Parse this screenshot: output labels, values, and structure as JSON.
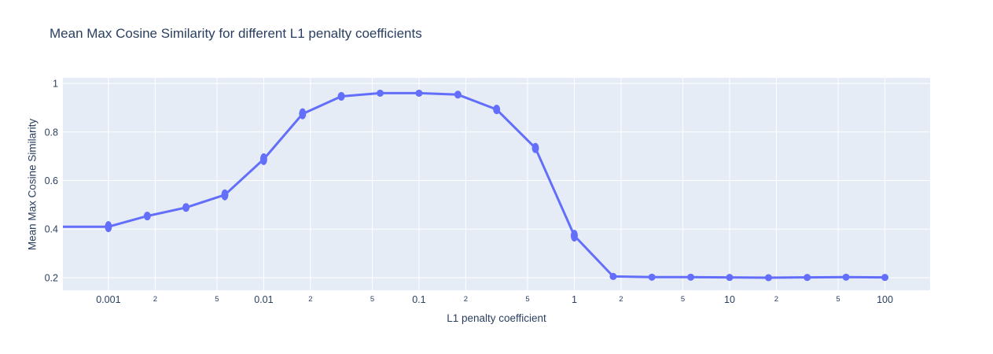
{
  "figure": {
    "background": "#FFFFFF"
  },
  "chart_data": {
    "type": "line",
    "title": "Mean Max Cosine Similarity for different L1 penalty coefficients",
    "xlabel": "L1 penalty coefficient",
    "ylabel": "Mean Max Cosine Similarity",
    "x_scale": "log",
    "legend": false,
    "grid": true,
    "x": [
      0.001,
      0.00178,
      0.00316,
      0.00562,
      0.01,
      0.0178,
      0.0316,
      0.0562,
      0.1,
      0.178,
      0.316,
      0.562,
      1,
      1.78,
      3.16,
      5.62,
      10,
      17.8,
      31.6,
      56.2,
      100
    ],
    "y": [
      0.41,
      0.454,
      0.489,
      0.541,
      0.688,
      0.875,
      0.947,
      0.96,
      0.96,
      0.954,
      0.893,
      0.734,
      0.373,
      0.205,
      0.202,
      0.202,
      0.201,
      0.2,
      0.201,
      0.202,
      0.201
    ],
    "line_extends_flat_to_left_plot_edge": true,
    "xlim_log10": [
      -3.293,
      2.291
    ],
    "ylim": [
      0.148,
      1.023
    ],
    "x_ticks_major": [
      {
        "value": 0.001,
        "label": "0.001"
      },
      {
        "value": 0.01,
        "label": "0.01"
      },
      {
        "value": 0.1,
        "label": "0.1"
      },
      {
        "value": 1,
        "label": "1"
      },
      {
        "value": 10,
        "label": "10"
      },
      {
        "value": 100,
        "label": "100"
      }
    ],
    "x_ticks_minor": [
      {
        "value": 0.002,
        "label": "2"
      },
      {
        "value": 0.005,
        "label": "5"
      },
      {
        "value": 0.02,
        "label": "2"
      },
      {
        "value": 0.05,
        "label": "5"
      },
      {
        "value": 0.2,
        "label": "2"
      },
      {
        "value": 0.5,
        "label": "5"
      },
      {
        "value": 2,
        "label": "2"
      },
      {
        "value": 5,
        "label": "5"
      },
      {
        "value": 20,
        "label": "2"
      },
      {
        "value": 50,
        "label": "5"
      }
    ],
    "y_ticks": [
      {
        "value": 0.2,
        "label": "0.2"
      },
      {
        "value": 0.4,
        "label": "0.4"
      },
      {
        "value": 0.6,
        "label": "0.6"
      },
      {
        "value": 0.8,
        "label": "0.8"
      },
      {
        "value": 1.0,
        "label": "1"
      }
    ],
    "colors": {
      "line": "#636EFA",
      "marker": "#636EFA",
      "plot_background": "#E5ECF6",
      "gridline": "#FFFFFF",
      "text": "#2a3f5f",
      "paper_background": "#FFFFFF"
    }
  }
}
